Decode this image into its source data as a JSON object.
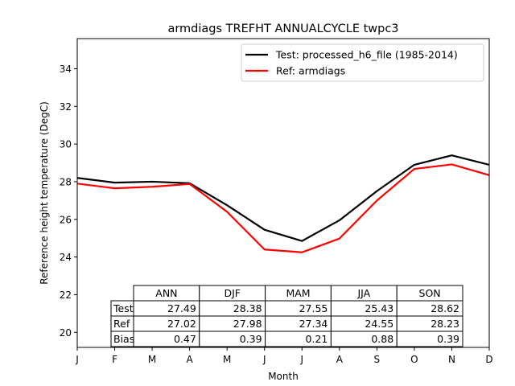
{
  "chart_data": {
    "type": "line",
    "title": "armdiags TREFHT ANNUALCYCLE twpc3",
    "xlabel": "Month",
    "ylabel": "Reference height temperature (DegC)",
    "x": [
      "J",
      "F",
      "M",
      "A",
      "M",
      "J",
      "J",
      "A",
      "S",
      "O",
      "N",
      "D"
    ],
    "ylim": [
      19.2,
      35.6
    ],
    "yticks": [
      20,
      22,
      24,
      26,
      28,
      30,
      32,
      34
    ],
    "grid": false,
    "legend_position": "top-right",
    "series": [
      {
        "name": "Test: processed_h6_file (1985-2014)",
        "color": "#000000",
        "values": [
          28.2,
          27.95,
          28.0,
          27.92,
          26.75,
          25.45,
          24.85,
          25.95,
          27.5,
          28.9,
          29.4,
          28.9
        ]
      },
      {
        "name": "Ref: armdiags",
        "color": "#ff0000",
        "values": [
          27.9,
          27.65,
          27.73,
          27.88,
          26.4,
          24.4,
          24.25,
          24.98,
          27.0,
          28.68,
          28.92,
          28.35
        ]
      }
    ],
    "table": {
      "col_labels": [
        "ANN",
        "DJF",
        "MAM",
        "JJA",
        "SON"
      ],
      "rows": [
        {
          "label": "Test",
          "values": [
            "27.49",
            "28.38",
            "27.55",
            "25.43",
            "28.62"
          ]
        },
        {
          "label": "Ref",
          "values": [
            "27.02",
            "27.98",
            "27.34",
            "24.55",
            "28.23"
          ]
        },
        {
          "label": "Bias",
          "values": [
            "0.47",
            "0.39",
            "0.21",
            "0.88",
            "0.39"
          ]
        }
      ]
    }
  }
}
